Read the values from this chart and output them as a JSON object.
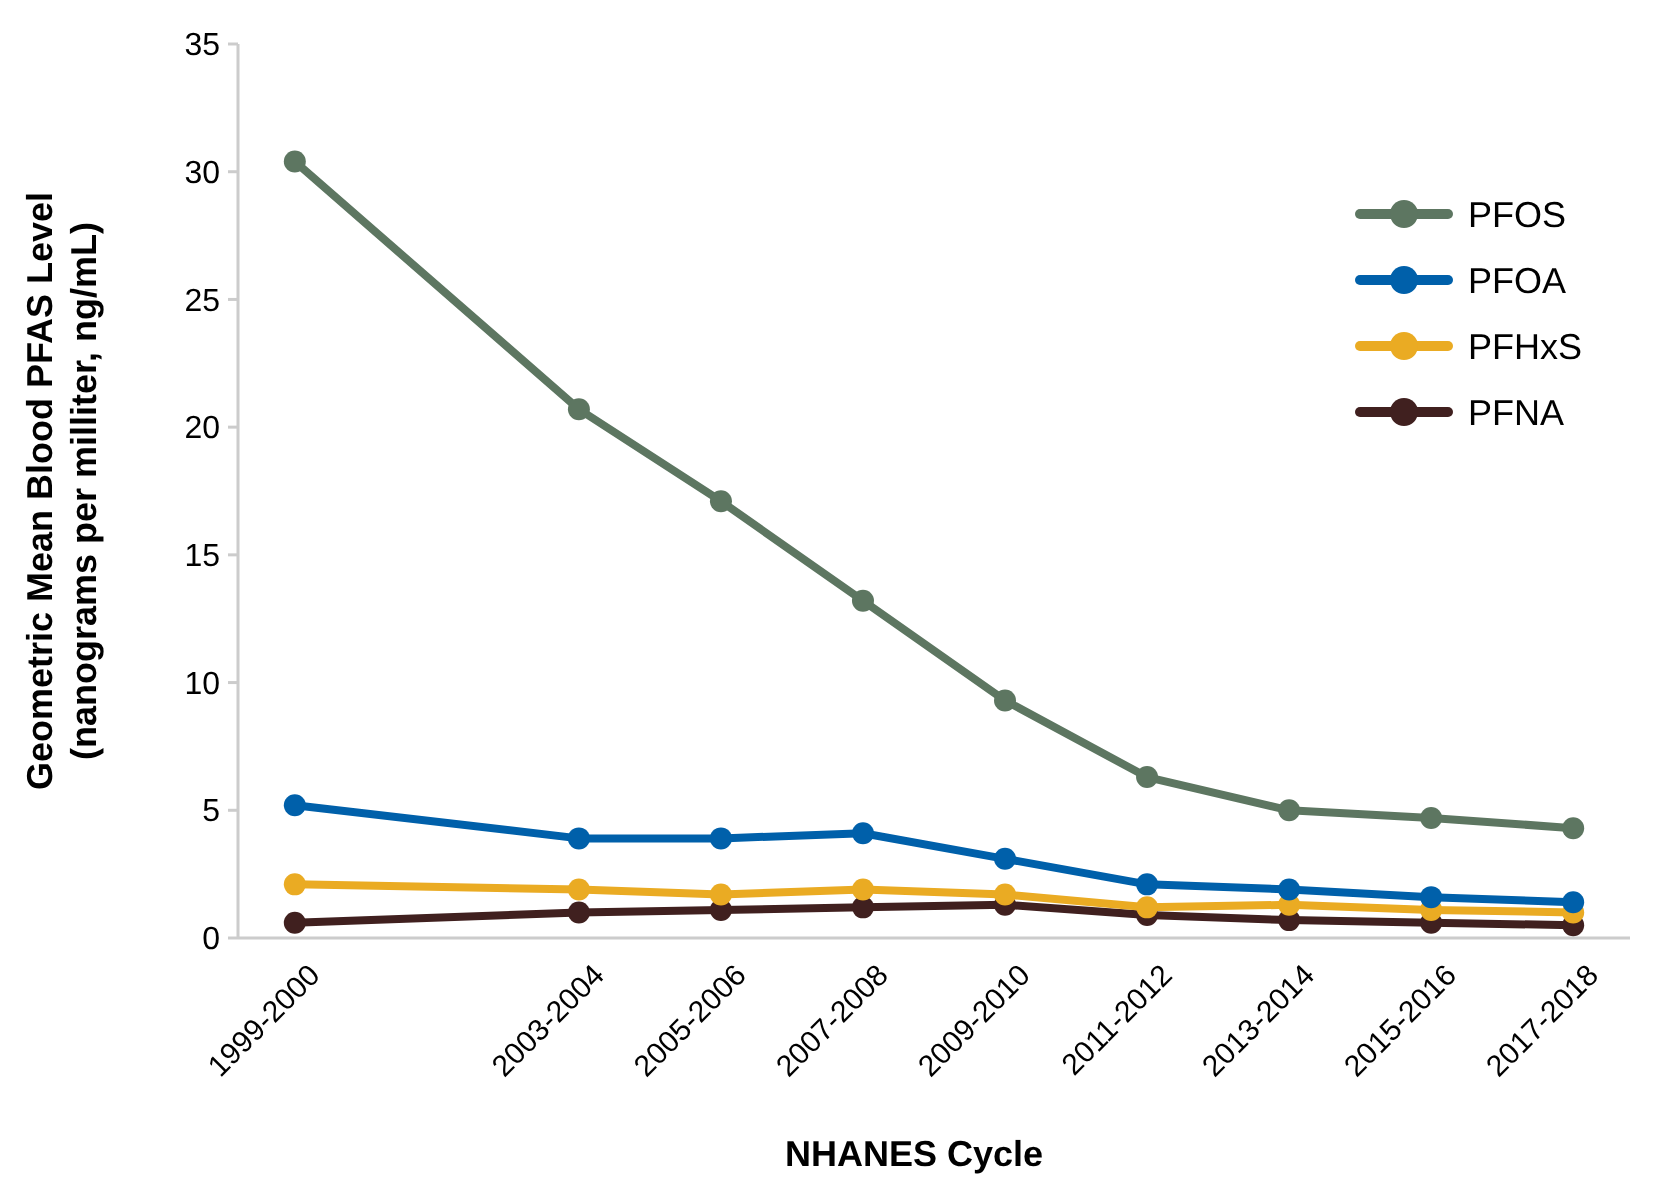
{
  "chart_data": {
    "type": "line",
    "xlabel": "NHANES Cycle",
    "ylabel": "Geometric Mean Blood PFAS Level\n(nanograms per milliter, ng/mL)",
    "categories": [
      "1999-2000",
      null,
      "2003-2004",
      "2005-2006",
      "2007-2008",
      "2009-2010",
      "2011-2012",
      "2013-2014",
      "2015-2016",
      "2017-2018"
    ],
    "ylim": [
      0,
      35
    ],
    "yticks": [
      0,
      5,
      10,
      15,
      20,
      25,
      30,
      35
    ],
    "grid": false,
    "legend": "top right",
    "marker": "circle",
    "line_style": "solid",
    "series": [
      {
        "name": "PFOS",
        "color": "#5d7661",
        "values": [
          30.4,
          null,
          20.7,
          17.1,
          13.2,
          9.3,
          6.3,
          5.0,
          4.7,
          4.3
        ]
      },
      {
        "name": "PFOA",
        "color": "#0060aa",
        "values": [
          5.2,
          null,
          3.9,
          3.9,
          4.1,
          3.1,
          2.1,
          1.9,
          1.6,
          1.4
        ]
      },
      {
        "name": "PFHxS",
        "color": "#eaab23",
        "values": [
          2.1,
          null,
          1.9,
          1.7,
          1.9,
          1.7,
          1.2,
          1.3,
          1.1,
          1.0
        ]
      },
      {
        "name": "PFNA",
        "color": "#40201f",
        "values": [
          0.6,
          null,
          1.0,
          1.1,
          1.2,
          1.3,
          0.9,
          0.7,
          0.6,
          0.5
        ]
      }
    ]
  }
}
